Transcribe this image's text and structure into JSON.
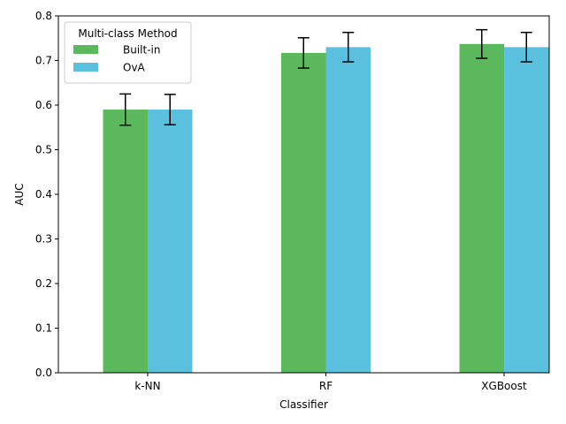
{
  "chart_data": {
    "type": "bar",
    "xlabel": "Classifier",
    "ylabel": "AUC",
    "categories": [
      "k-NN",
      "RF",
      "XGBoost"
    ],
    "ylim": [
      0,
      0.8
    ],
    "yticks": [
      "0.0",
      "0.1",
      "0.2",
      "0.3",
      "0.4",
      "0.5",
      "0.6",
      "0.7",
      "0.8"
    ],
    "grid": false,
    "legend": {
      "title": "Multi-class Method",
      "placement": "top-left"
    },
    "series": [
      {
        "name": "Built-in",
        "color": "#5cb85c",
        "values": [
          0.59,
          0.717,
          0.737
        ],
        "errors": [
          0.035,
          0.034,
          0.032
        ]
      },
      {
        "name": "OvA",
        "color": "#5bc0de",
        "values": [
          0.59,
          0.73,
          0.73
        ],
        "errors": [
          0.034,
          0.033,
          0.033
        ]
      }
    ]
  }
}
